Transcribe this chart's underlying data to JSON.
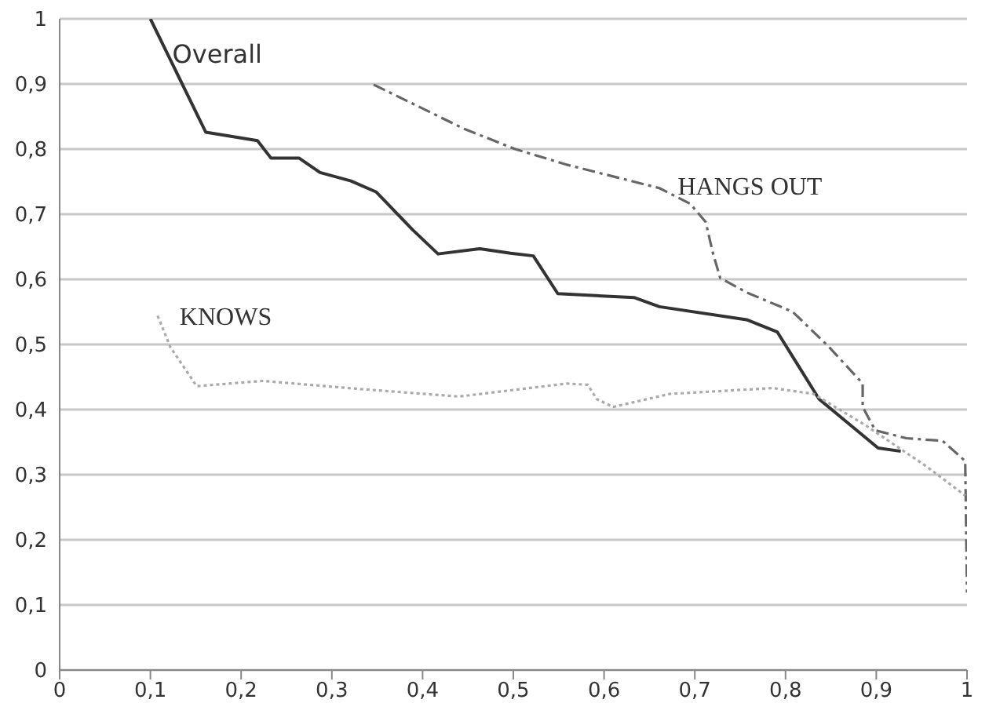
{
  "chart_data": {
    "type": "line",
    "xlim": [
      0,
      1
    ],
    "ylim": [
      0,
      1
    ],
    "xticks": [
      0,
      {
        "value": 0.1,
        "label": "0,1"
      },
      {
        "value": 0.2,
        "label": "0,2"
      },
      {
        "value": 0.3,
        "label": "0,3"
      },
      {
        "value": 0.4,
        "label": "0,4"
      },
      {
        "value": 0.5,
        "label": "0,5"
      },
      {
        "value": 0.6,
        "label": "0,6"
      },
      {
        "value": 0.7,
        "label": "0,7"
      },
      {
        "value": 0.8,
        "label": "0,8"
      },
      {
        "value": 0.9,
        "label": "0,9"
      },
      1
    ],
    "yticks": [
      0,
      {
        "value": 0.1,
        "label": "0,1"
      },
      {
        "value": 0.2,
        "label": "0,2"
      },
      {
        "value": 0.3,
        "label": "0,3"
      },
      {
        "value": 0.4,
        "label": "0,4"
      },
      {
        "value": 0.5,
        "label": "0,5"
      },
      {
        "value": 0.6,
        "label": "0,6"
      },
      {
        "value": 0.7,
        "label": "0,7"
      },
      {
        "value": 0.8,
        "label": "0,8"
      },
      {
        "value": 0.9,
        "label": "0,9"
      },
      1
    ],
    "grid": "y",
    "legend": false,
    "marker": "none",
    "series": [
      {
        "name": "Overall",
        "color": "#333333",
        "line_style": "solid",
        "x": [
          0.1,
          0.161,
          0.218,
          0.233,
          0.264,
          0.287,
          0.321,
          0.349,
          0.389,
          0.417,
          0.463,
          0.497,
          0.522,
          0.549,
          0.633,
          0.661,
          0.757,
          0.791,
          0.837,
          0.902,
          0.927
        ],
        "values": [
          1.0,
          0.826,
          0.813,
          0.786,
          0.786,
          0.764,
          0.751,
          0.734,
          0.676,
          0.639,
          0.647,
          0.64,
          0.636,
          0.578,
          0.572,
          0.558,
          0.538,
          0.519,
          0.416,
          0.341,
          0.336
        ]
      },
      {
        "name": "HANGS OUT",
        "color": "#666666",
        "line_style": "dashed",
        "x": [
          0.346,
          0.446,
          0.502,
          0.559,
          0.661,
          0.695,
          0.712,
          0.72,
          0.728,
          0.757,
          0.808,
          0.848,
          0.885,
          0.885,
          0.899,
          0.933,
          0.973,
          0.998,
          1.0
        ],
        "values": [
          0.899,
          0.831,
          0.8,
          0.776,
          0.74,
          0.716,
          0.688,
          0.64,
          0.602,
          0.58,
          0.55,
          0.496,
          0.44,
          0.404,
          0.368,
          0.356,
          0.352,
          0.321,
          0.119
        ]
      },
      {
        "name": "KNOWS",
        "color": "#aaaaaa",
        "line_style": "dotted",
        "x": [
          0.108,
          0.122,
          0.151,
          0.224,
          0.327,
          0.44,
          0.559,
          0.582,
          0.592,
          0.61,
          0.672,
          0.786,
          0.831,
          0.888,
          0.956,
          0.998
        ],
        "values": [
          0.544,
          0.496,
          0.436,
          0.444,
          0.432,
          0.42,
          0.44,
          0.438,
          0.416,
          0.404,
          0.424,
          0.433,
          0.424,
          0.376,
          0.312,
          0.268
        ]
      }
    ]
  }
}
